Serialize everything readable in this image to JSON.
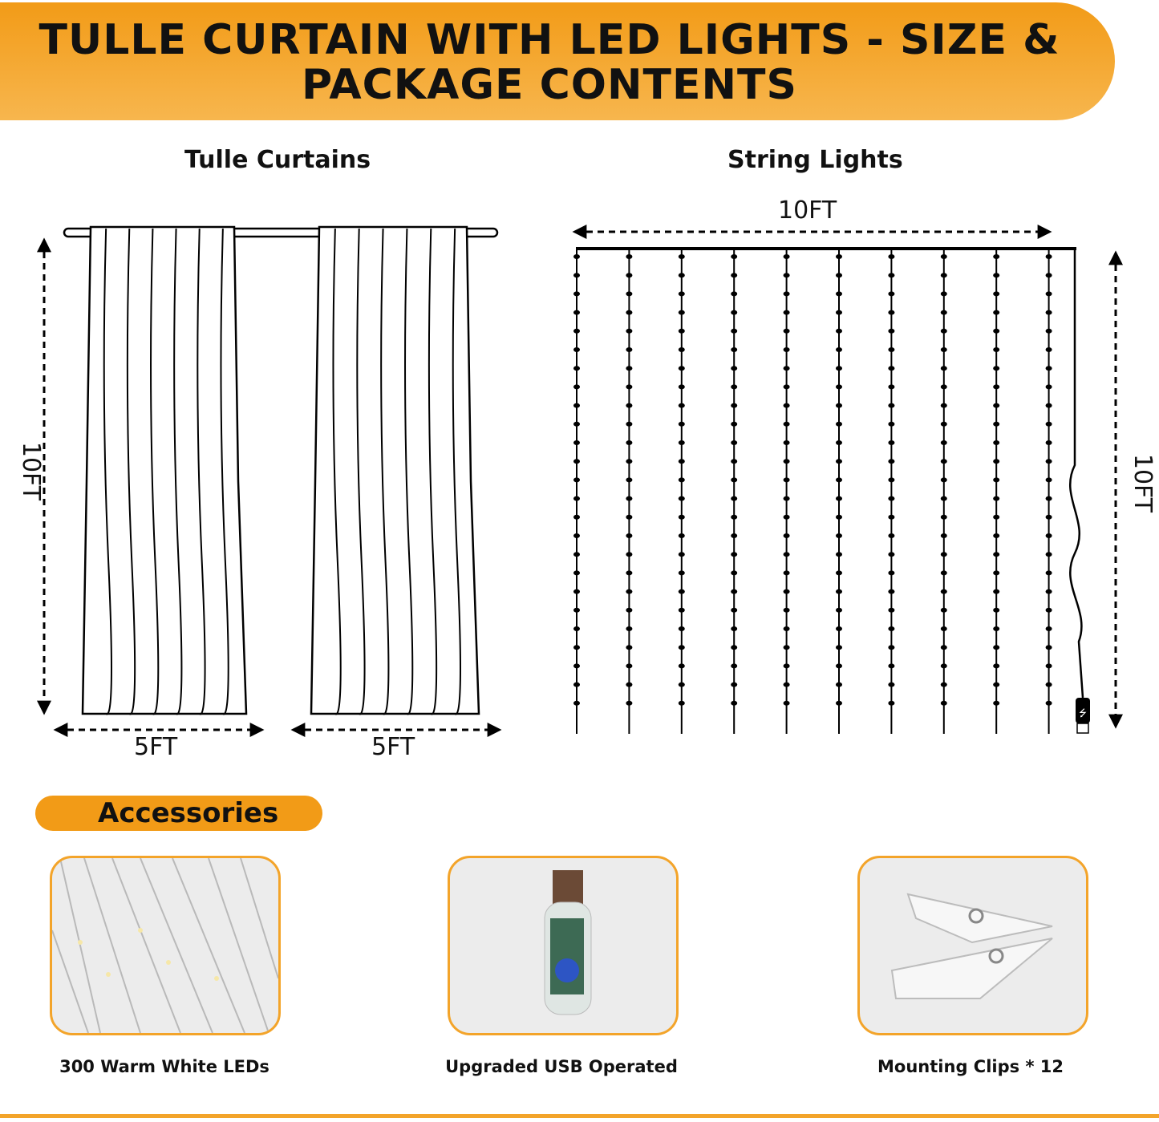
{
  "header": {
    "title": "TULLE CURTAIN WITH LED LIGHTS - SIZE & PACKAGE CONTENTS",
    "accent_color": "#f29b17"
  },
  "curtains": {
    "label": "Tulle Curtains",
    "height_label": "10FT",
    "width_left": "5FT",
    "width_right": "5FT"
  },
  "lights": {
    "label": "String Lights",
    "width_label": "10FT",
    "height_label": "10FT",
    "strands": 10,
    "usb_icon": "usb-plug-icon"
  },
  "accessories": {
    "label": "Accessories",
    "items": [
      {
        "caption": "300 Warm White LEDs"
      },
      {
        "caption": "Upgraded USB Operated"
      },
      {
        "caption": "Mounting Clips * 12"
      }
    ]
  }
}
